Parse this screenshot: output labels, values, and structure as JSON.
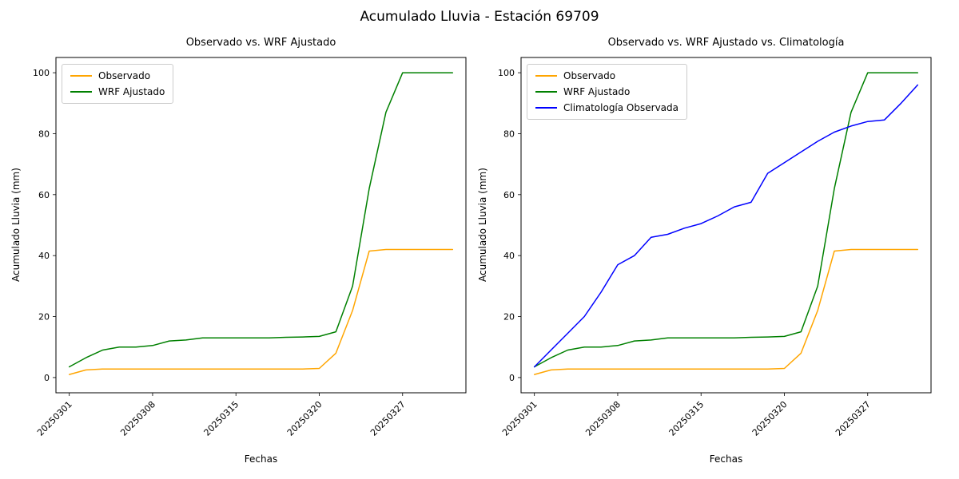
{
  "figure": {
    "suptitle": "Acumulado Lluvia - Estación 69709"
  },
  "chart_data": [
    {
      "type": "line",
      "title": "Observado vs. WRF Ajustado",
      "xlabel": "Fechas",
      "ylabel": "Acumulado Lluvia (mm)",
      "ylim": [
        0,
        100
      ],
      "y_ticks": [
        0,
        20,
        40,
        60,
        80,
        100
      ],
      "x_tick_labels": [
        "20250301",
        "20250308",
        "20250315",
        "20250320",
        "20250327"
      ],
      "x_tick_positions": [
        0,
        5,
        10,
        15,
        20
      ],
      "grid": false,
      "legend_position": "upper left",
      "series": [
        {
          "name": "Observado",
          "color": "#FFA500",
          "values": [
            1,
            2.5,
            2.8,
            2.8,
            2.8,
            2.8,
            2.8,
            2.8,
            2.8,
            2.8,
            2.8,
            2.8,
            2.8,
            2.8,
            2.8,
            3,
            8,
            22,
            41.5,
            42,
            42,
            42,
            42,
            42
          ]
        },
        {
          "name": "WRF Ajustado",
          "color": "#008000",
          "values": [
            3.5,
            6.5,
            9,
            10,
            10,
            10.5,
            12,
            12.3,
            13,
            13,
            13,
            13,
            13,
            13.2,
            13.3,
            13.5,
            15,
            30,
            62,
            87,
            100,
            100,
            100,
            100
          ]
        }
      ]
    },
    {
      "type": "line",
      "title": "Observado vs. WRF Ajustado vs. Climatología",
      "xlabel": "Fechas",
      "ylabel": "Acumulado Lluvia (mm)",
      "ylim": [
        0,
        100
      ],
      "y_ticks": [
        0,
        20,
        40,
        60,
        80,
        100
      ],
      "x_tick_labels": [
        "20250301",
        "20250308",
        "20250315",
        "20250320",
        "20250327"
      ],
      "x_tick_positions": [
        0,
        5,
        10,
        15,
        20
      ],
      "grid": false,
      "legend_position": "upper left",
      "series": [
        {
          "name": "Observado",
          "color": "#FFA500",
          "values": [
            1,
            2.5,
            2.8,
            2.8,
            2.8,
            2.8,
            2.8,
            2.8,
            2.8,
            2.8,
            2.8,
            2.8,
            2.8,
            2.8,
            2.8,
            3,
            8,
            22,
            41.5,
            42,
            42,
            42,
            42,
            42
          ]
        },
        {
          "name": "WRF Ajustado",
          "color": "#008000",
          "values": [
            3.5,
            6.5,
            9,
            10,
            10,
            10.5,
            12,
            12.3,
            13,
            13,
            13,
            13,
            13,
            13.2,
            13.3,
            13.5,
            15,
            30,
            62,
            87,
            100,
            100,
            100,
            100
          ]
        },
        {
          "name": "Climatología Observada",
          "color": "#0000FF",
          "values": [
            3.5,
            9,
            14.5,
            20,
            28,
            37,
            40,
            46,
            47,
            49,
            50.5,
            53,
            56,
            57.5,
            67,
            70.5,
            74,
            77.5,
            80.5,
            82.5,
            84,
            84.5,
            90,
            96
          ]
        }
      ]
    }
  ]
}
